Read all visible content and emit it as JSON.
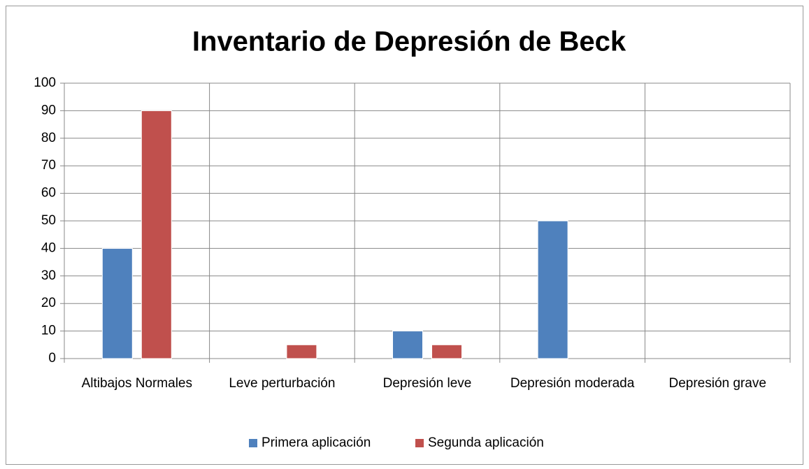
{
  "chart_data": {
    "type": "bar",
    "title": "Inventario de Depresión de Beck",
    "categories": [
      "Altibajos Normales",
      "Leve perturbación",
      "Depresión leve",
      "Depresión moderada",
      "Depresión grave"
    ],
    "series": [
      {
        "name": "Primera aplicación",
        "color": "#4f81bd",
        "values": [
          40,
          0,
          10,
          50,
          0
        ]
      },
      {
        "name": "Segunda aplicación",
        "color": "#c0504d",
        "values": [
          90,
          5,
          5,
          0,
          0
        ]
      }
    ],
    "ylim": [
      0,
      100
    ],
    "yticks": [
      0,
      10,
      20,
      30,
      40,
      50,
      60,
      70,
      80,
      90,
      100
    ],
    "grid": true,
    "legend": "bottom"
  }
}
